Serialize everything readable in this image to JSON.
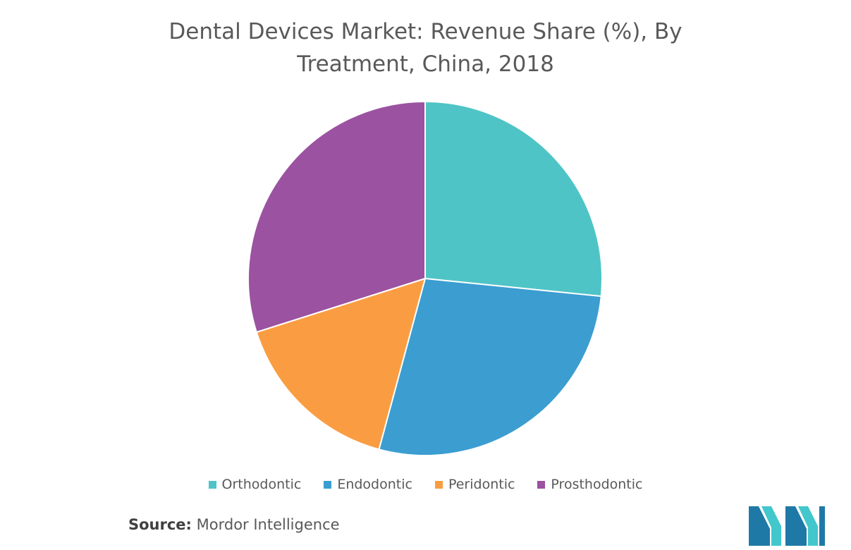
{
  "chart_data": {
    "type": "pie",
    "title_line1": "Dental Devices Market: Revenue Share (%), By",
    "title_line2": "Treatment, China, 2018",
    "categories": [
      "Orthodontic",
      "Endodontic",
      "Peridontic",
      "Prosthodontic"
    ],
    "values": [
      26.6,
      27.6,
      15.9,
      29.9
    ],
    "colors": [
      "#4FC4C6",
      "#3B9DD0",
      "#FA9D42",
      "#9B52A0"
    ],
    "legend_position": "bottom"
  },
  "source": {
    "label": "Source:",
    "text": "Mordor Intelligence"
  },
  "logo": {
    "icon": "mordor-intelligence-logo",
    "colors": [
      "#1F79A7",
      "#42C7CC"
    ]
  }
}
